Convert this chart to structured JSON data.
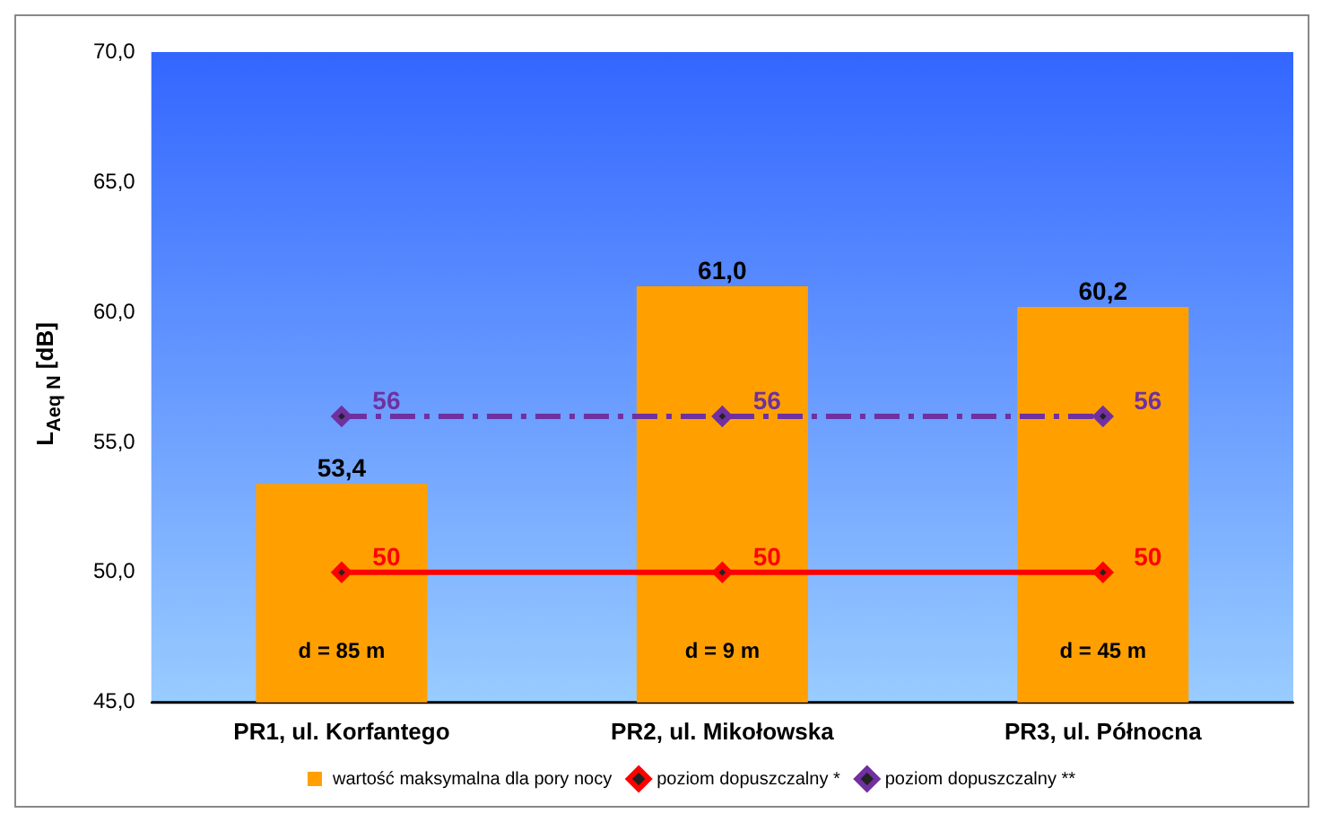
{
  "chart_data": {
    "type": "bar",
    "ylabel": "L$_{Aeq N}$ [dB]",
    "categories": [
      "PR1, ul. Korfantego",
      "PR2, ul. Mikołowska",
      "PR3, ul. Północna"
    ],
    "series": [
      {
        "name": "wartość maksymalna dla pory nocy",
        "color": "#ffa000",
        "values": [
          53.4,
          61.0,
          60.2
        ],
        "value_labels": [
          "53,4",
          "61,0",
          "60,2"
        ]
      },
      {
        "name": "poziom dopuszczalny *",
        "type": "line",
        "color": "#ff0000",
        "values": [
          50,
          50,
          50
        ],
        "value_labels": [
          "50",
          "50",
          "50"
        ],
        "marker": "diamond",
        "line_style": "solid"
      },
      {
        "name": "poziom dopuszczalny **",
        "type": "line",
        "color": "#7030a0",
        "values": [
          56,
          56,
          56
        ],
        "value_labels": [
          "56",
          "56",
          "56"
        ],
        "marker": "diamond",
        "line_style": "dashed"
      }
    ],
    "annotations": [
      "d = 85 m",
      "d = 9 m",
      "d = 45 m"
    ],
    "ylim": [
      45,
      70
    ],
    "yticks": [
      {
        "value": 45,
        "label": "45,0"
      },
      {
        "value": 50,
        "label": "50,0"
      },
      {
        "value": 55,
        "label": "55,0"
      },
      {
        "value": 60,
        "label": "60,0"
      },
      {
        "value": 65,
        "label": "65,0"
      },
      {
        "value": 70,
        "label": "70,0"
      }
    ],
    "grid": false,
    "legend": "bottom"
  }
}
